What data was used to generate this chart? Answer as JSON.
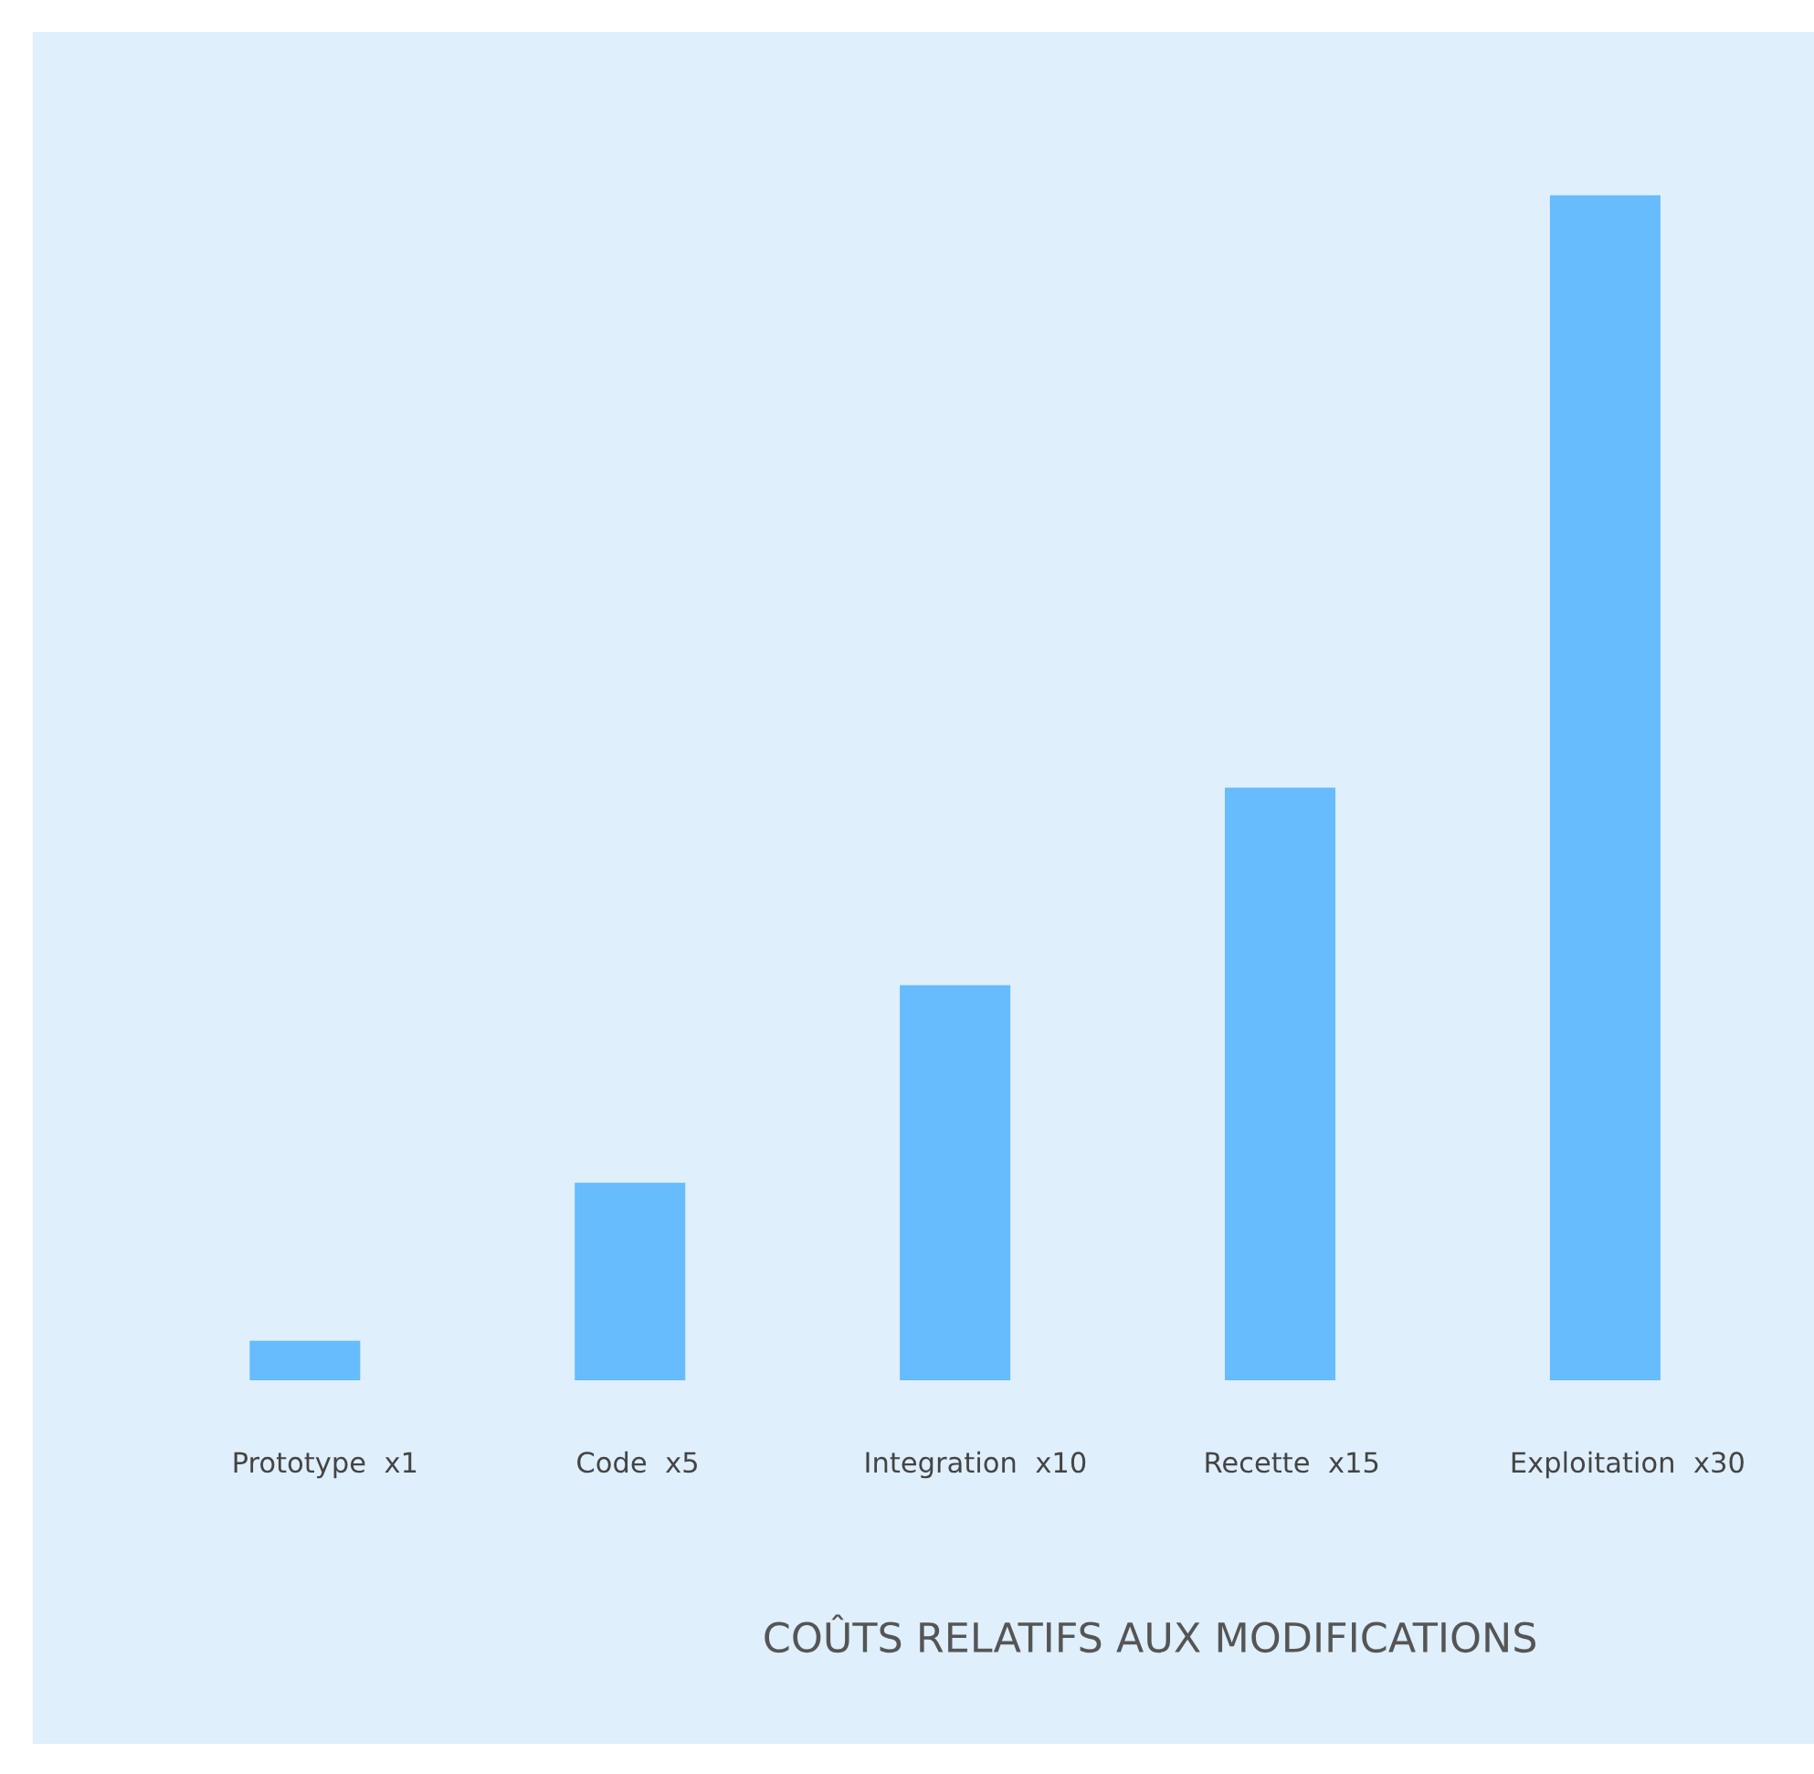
{
  "chart_data": {
    "type": "bar",
    "xlabel": "COÛTS RELATIFS AUX MODIFICATIONS",
    "categories": [
      "Prototype",
      "Code",
      "Integration",
      "Recette",
      "Exploitation"
    ],
    "values": [
      1,
      5,
      10,
      15,
      30
    ],
    "value_labels": [
      "x1",
      "x5",
      "x10",
      "x15",
      "x30"
    ],
    "color": "#66bcfc"
  }
}
